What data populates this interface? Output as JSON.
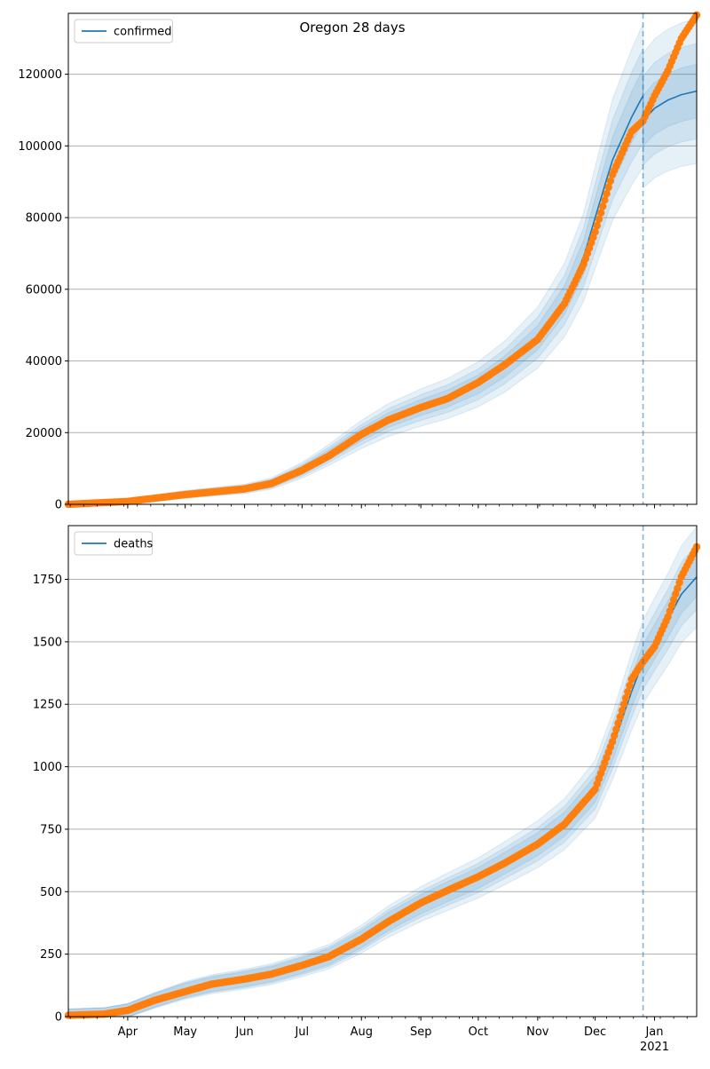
{
  "title": "Oregon 28 days",
  "colors": {
    "model": "#1f77b4",
    "observed": "#ff7f0e",
    "band": "#1f77b4",
    "grid": "#b0b0b0",
    "forecast_line": "#1f77b4"
  },
  "x_axis": {
    "month_labels": [
      "Apr",
      "May",
      "Jun",
      "Jul",
      "Aug",
      "Sep",
      "Oct",
      "Nov",
      "Dec",
      "Jan"
    ],
    "year_label": "2021"
  },
  "chart_data": [
    {
      "type": "line",
      "title": "Oregon 28 days",
      "legend": [
        "confirmed"
      ],
      "legend_position": "top-left",
      "grid": "y-axis only",
      "x_range": [
        "2020-03-01",
        "2021-01-23"
      ],
      "ylim": [
        0,
        137000
      ],
      "yticks": [
        0,
        20000,
        40000,
        60000,
        80000,
        100000,
        120000
      ],
      "forecast_start": "2020-12-26",
      "fit_end": "2020-12-26",
      "model_keypoints": [
        {
          "x": "2020-03-01",
          "y": 0
        },
        {
          "x": "2020-04-01",
          "y": 800
        },
        {
          "x": "2020-05-01",
          "y": 2800
        },
        {
          "x": "2020-06-01",
          "y": 4300
        },
        {
          "x": "2020-06-15",
          "y": 5800
        },
        {
          "x": "2020-07-01",
          "y": 9500
        },
        {
          "x": "2020-07-15",
          "y": 13800
        },
        {
          "x": "2020-08-01",
          "y": 19500
        },
        {
          "x": "2020-08-15",
          "y": 23500
        },
        {
          "x": "2020-09-01",
          "y": 27000
        },
        {
          "x": "2020-09-15",
          "y": 29500
        },
        {
          "x": "2020-10-01",
          "y": 33500
        },
        {
          "x": "2020-10-15",
          "y": 38500
        },
        {
          "x": "2020-11-01",
          "y": 46500
        },
        {
          "x": "2020-11-15",
          "y": 57000
        },
        {
          "x": "2020-11-25",
          "y": 69000
        },
        {
          "x": "2020-12-01",
          "y": 80000
        },
        {
          "x": "2020-12-10",
          "y": 96000
        },
        {
          "x": "2020-12-20",
          "y": 108000
        },
        {
          "x": "2020-12-26",
          "y": 114000
        }
      ],
      "forecast_keypoints": [
        {
          "x": "2020-12-26",
          "y": 107000
        },
        {
          "x": "2021-01-01",
          "y": 110500
        },
        {
          "x": "2021-01-08",
          "y": 112800
        },
        {
          "x": "2021-01-15",
          "y": 114300
        },
        {
          "x": "2021-01-23",
          "y": 115300
        }
      ],
      "observed_keypoints": [
        {
          "x": "2020-03-01",
          "y": 0
        },
        {
          "x": "2020-04-01",
          "y": 800
        },
        {
          "x": "2020-05-01",
          "y": 2700
        },
        {
          "x": "2020-06-01",
          "y": 4300
        },
        {
          "x": "2020-06-15",
          "y": 5800
        },
        {
          "x": "2020-07-01",
          "y": 9500
        },
        {
          "x": "2020-07-15",
          "y": 13500
        },
        {
          "x": "2020-08-01",
          "y": 19500
        },
        {
          "x": "2020-08-15",
          "y": 23500
        },
        {
          "x": "2020-09-01",
          "y": 27000
        },
        {
          "x": "2020-09-15",
          "y": 29500
        },
        {
          "x": "2020-10-01",
          "y": 34000
        },
        {
          "x": "2020-10-15",
          "y": 39000
        },
        {
          "x": "2020-11-01",
          "y": 46000
        },
        {
          "x": "2020-11-15",
          "y": 56000
        },
        {
          "x": "2020-11-25",
          "y": 67000
        },
        {
          "x": "2020-12-01",
          "y": 76000
        },
        {
          "x": "2020-12-10",
          "y": 92000
        },
        {
          "x": "2020-12-20",
          "y": 104000
        },
        {
          "x": "2020-12-26",
          "y": 107000
        },
        {
          "x": "2021-01-01",
          "y": 114000
        },
        {
          "x": "2021-01-08",
          "y": 121000
        },
        {
          "x": "2021-01-15",
          "y": 130000
        },
        {
          "x": "2021-01-23",
          "y": 136500
        }
      ],
      "band_rel_widths": [
        0.06,
        0.11,
        0.17
      ]
    },
    {
      "type": "line",
      "title": "",
      "legend": [
        "deaths"
      ],
      "legend_position": "top-left",
      "grid": "y-axis only",
      "x_range": [
        "2020-03-01",
        "2021-01-23"
      ],
      "ylim": [
        0,
        1965
      ],
      "yticks": [
        0,
        250,
        500,
        750,
        1000,
        1250,
        1500,
        1750
      ],
      "forecast_start": "2020-12-26",
      "fit_end": "2021-01-23",
      "model_keypoints": [
        {
          "x": "2020-03-01",
          "y": 5
        },
        {
          "x": "2020-03-20",
          "y": 10
        },
        {
          "x": "2020-04-01",
          "y": 25
        },
        {
          "x": "2020-04-15",
          "y": 65
        },
        {
          "x": "2020-05-01",
          "y": 105
        },
        {
          "x": "2020-05-15",
          "y": 130
        },
        {
          "x": "2020-06-01",
          "y": 150
        },
        {
          "x": "2020-06-15",
          "y": 170
        },
        {
          "x": "2020-07-01",
          "y": 205
        },
        {
          "x": "2020-07-15",
          "y": 240
        },
        {
          "x": "2020-08-01",
          "y": 310
        },
        {
          "x": "2020-08-15",
          "y": 380
        },
        {
          "x": "2020-09-01",
          "y": 450
        },
        {
          "x": "2020-09-15",
          "y": 500
        },
        {
          "x": "2020-10-01",
          "y": 555
        },
        {
          "x": "2020-10-15",
          "y": 615
        },
        {
          "x": "2020-11-01",
          "y": 690
        },
        {
          "x": "2020-11-15",
          "y": 770
        },
        {
          "x": "2020-12-01",
          "y": 910
        },
        {
          "x": "2020-12-10",
          "y": 1080
        },
        {
          "x": "2020-12-20",
          "y": 1300
        },
        {
          "x": "2020-12-26",
          "y": 1420
        },
        {
          "x": "2021-01-01",
          "y": 1500
        },
        {
          "x": "2021-01-08",
          "y": 1590
        },
        {
          "x": "2021-01-15",
          "y": 1690
        },
        {
          "x": "2021-01-23",
          "y": 1760
        }
      ],
      "forecast_keypoints": [],
      "observed_keypoints": [
        {
          "x": "2020-03-01",
          "y": 5
        },
        {
          "x": "2020-03-20",
          "y": 10
        },
        {
          "x": "2020-04-01",
          "y": 25
        },
        {
          "x": "2020-04-15",
          "y": 65
        },
        {
          "x": "2020-05-01",
          "y": 100
        },
        {
          "x": "2020-05-15",
          "y": 130
        },
        {
          "x": "2020-06-01",
          "y": 150
        },
        {
          "x": "2020-06-15",
          "y": 170
        },
        {
          "x": "2020-07-01",
          "y": 205
        },
        {
          "x": "2020-07-15",
          "y": 240
        },
        {
          "x": "2020-08-01",
          "y": 310
        },
        {
          "x": "2020-08-15",
          "y": 380
        },
        {
          "x": "2020-09-01",
          "y": 455
        },
        {
          "x": "2020-09-15",
          "y": 505
        },
        {
          "x": "2020-10-01",
          "y": 560
        },
        {
          "x": "2020-10-15",
          "y": 615
        },
        {
          "x": "2020-11-01",
          "y": 690
        },
        {
          "x": "2020-11-15",
          "y": 770
        },
        {
          "x": "2020-12-01",
          "y": 910
        },
        {
          "x": "2020-12-10",
          "y": 1100
        },
        {
          "x": "2020-12-20",
          "y": 1350
        },
        {
          "x": "2020-12-26",
          "y": 1420
        },
        {
          "x": "2021-01-01",
          "y": 1480
        },
        {
          "x": "2021-01-08",
          "y": 1600
        },
        {
          "x": "2021-01-15",
          "y": 1760
        },
        {
          "x": "2021-01-23",
          "y": 1880
        }
      ],
      "band_rel_widths": [
        0.03,
        0.06,
        0.1
      ]
    }
  ]
}
